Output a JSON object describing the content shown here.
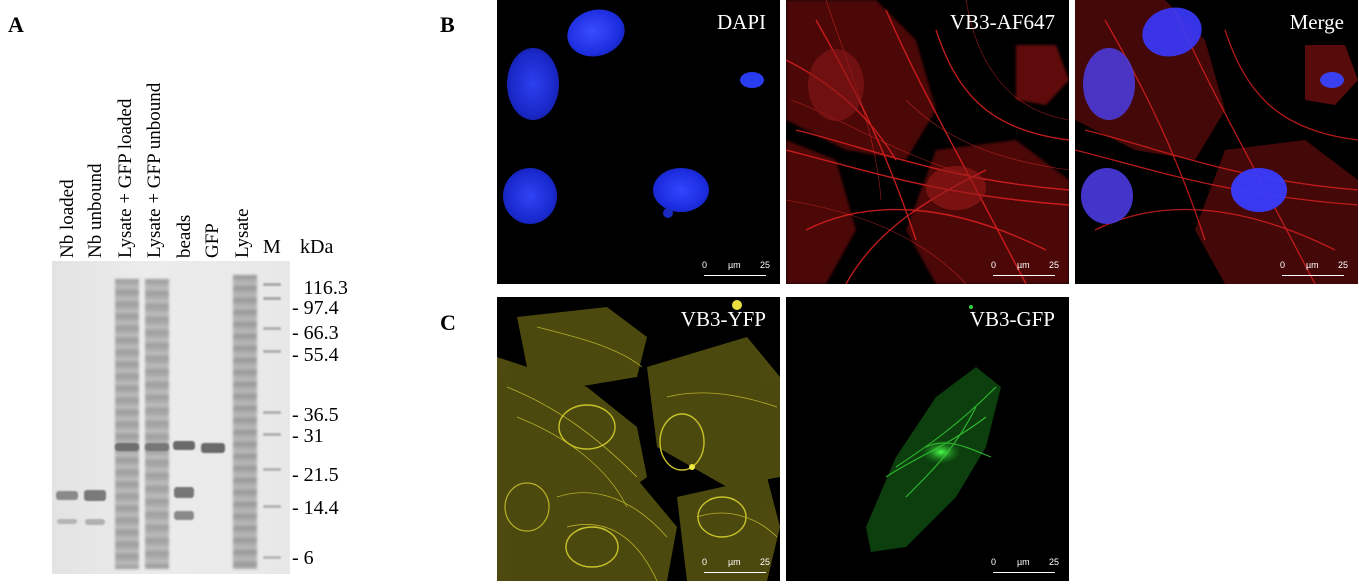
{
  "panels": {
    "a": "A",
    "b": "B",
    "c": "C"
  },
  "gel": {
    "lanes": [
      "Nb loaded",
      "Nb unbound",
      "Lysate + GFP loaded",
      "Lysate + GFP unbound",
      "beads",
      "GFP",
      "Lysate",
      "M"
    ],
    "unit_label": "kDa",
    "markers": [
      "116.3",
      "97.4",
      "66.3",
      "55.4",
      "36.5",
      "31",
      "21.5",
      "14.4",
      "6"
    ]
  },
  "micrographs": [
    {
      "title": "DAPI",
      "scale": {
        "start": "0",
        "unit": "µm",
        "end": "25"
      }
    },
    {
      "title": "VB3-AF647",
      "scale": {
        "start": "0",
        "unit": "µm",
        "end": "25"
      }
    },
    {
      "title": "Merge",
      "scale": {
        "start": "0",
        "unit": "µm",
        "end": "25"
      }
    },
    {
      "title": "VB3-YFP",
      "scale": {
        "start": "0",
        "unit": "µm",
        "end": "25"
      }
    },
    {
      "title": "VB3-GFP",
      "scale": {
        "start": "0",
        "unit": "µm",
        "end": "25"
      }
    }
  ],
  "colors": {
    "dapi": "#1f33ff",
    "af647": "#e01818",
    "yfp": "#d8d230",
    "gfp": "#35d035"
  }
}
